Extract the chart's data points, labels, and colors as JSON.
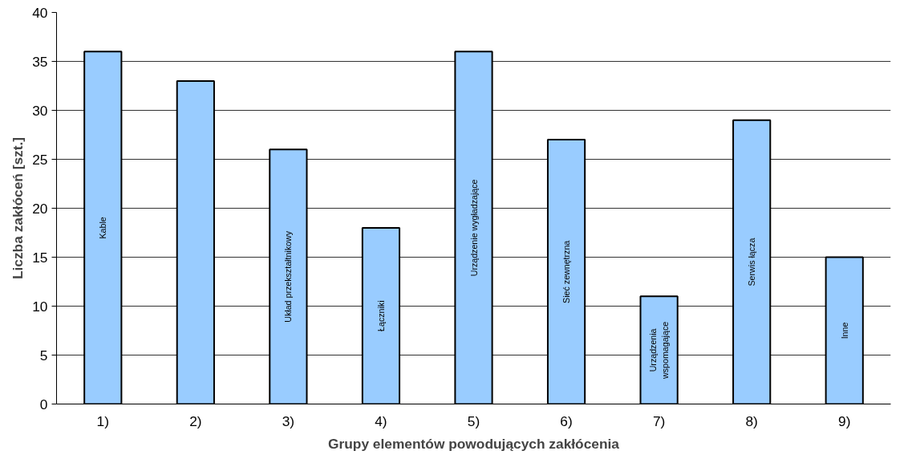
{
  "chart_data": {
    "type": "bar",
    "xlabel": "Grupy elementów powodujących zakłócenia",
    "ylabel": "Liczba zakłóceń [szt.]",
    "categories": [
      "1)",
      "2)",
      "3)",
      "4)",
      "5)",
      "6)",
      "7)",
      "8)",
      "9)"
    ],
    "values": [
      36,
      33,
      26,
      18,
      36,
      27,
      11,
      29,
      15
    ],
    "color": "#99ccff",
    "ylim": [
      0,
      40
    ],
    "yticks": [
      0,
      5,
      10,
      15,
      20,
      25,
      30,
      35,
      40
    ],
    "grid": "y",
    "value_labels": [
      "Kable",
      null,
      "Układ przekształtnikowy",
      "Łączniki",
      "Urządzenie wygładzające",
      "Sieć zewnętrzna",
      "Urządzenia\nwspomagające",
      "Serwis łącza",
      "Inne"
    ]
  }
}
